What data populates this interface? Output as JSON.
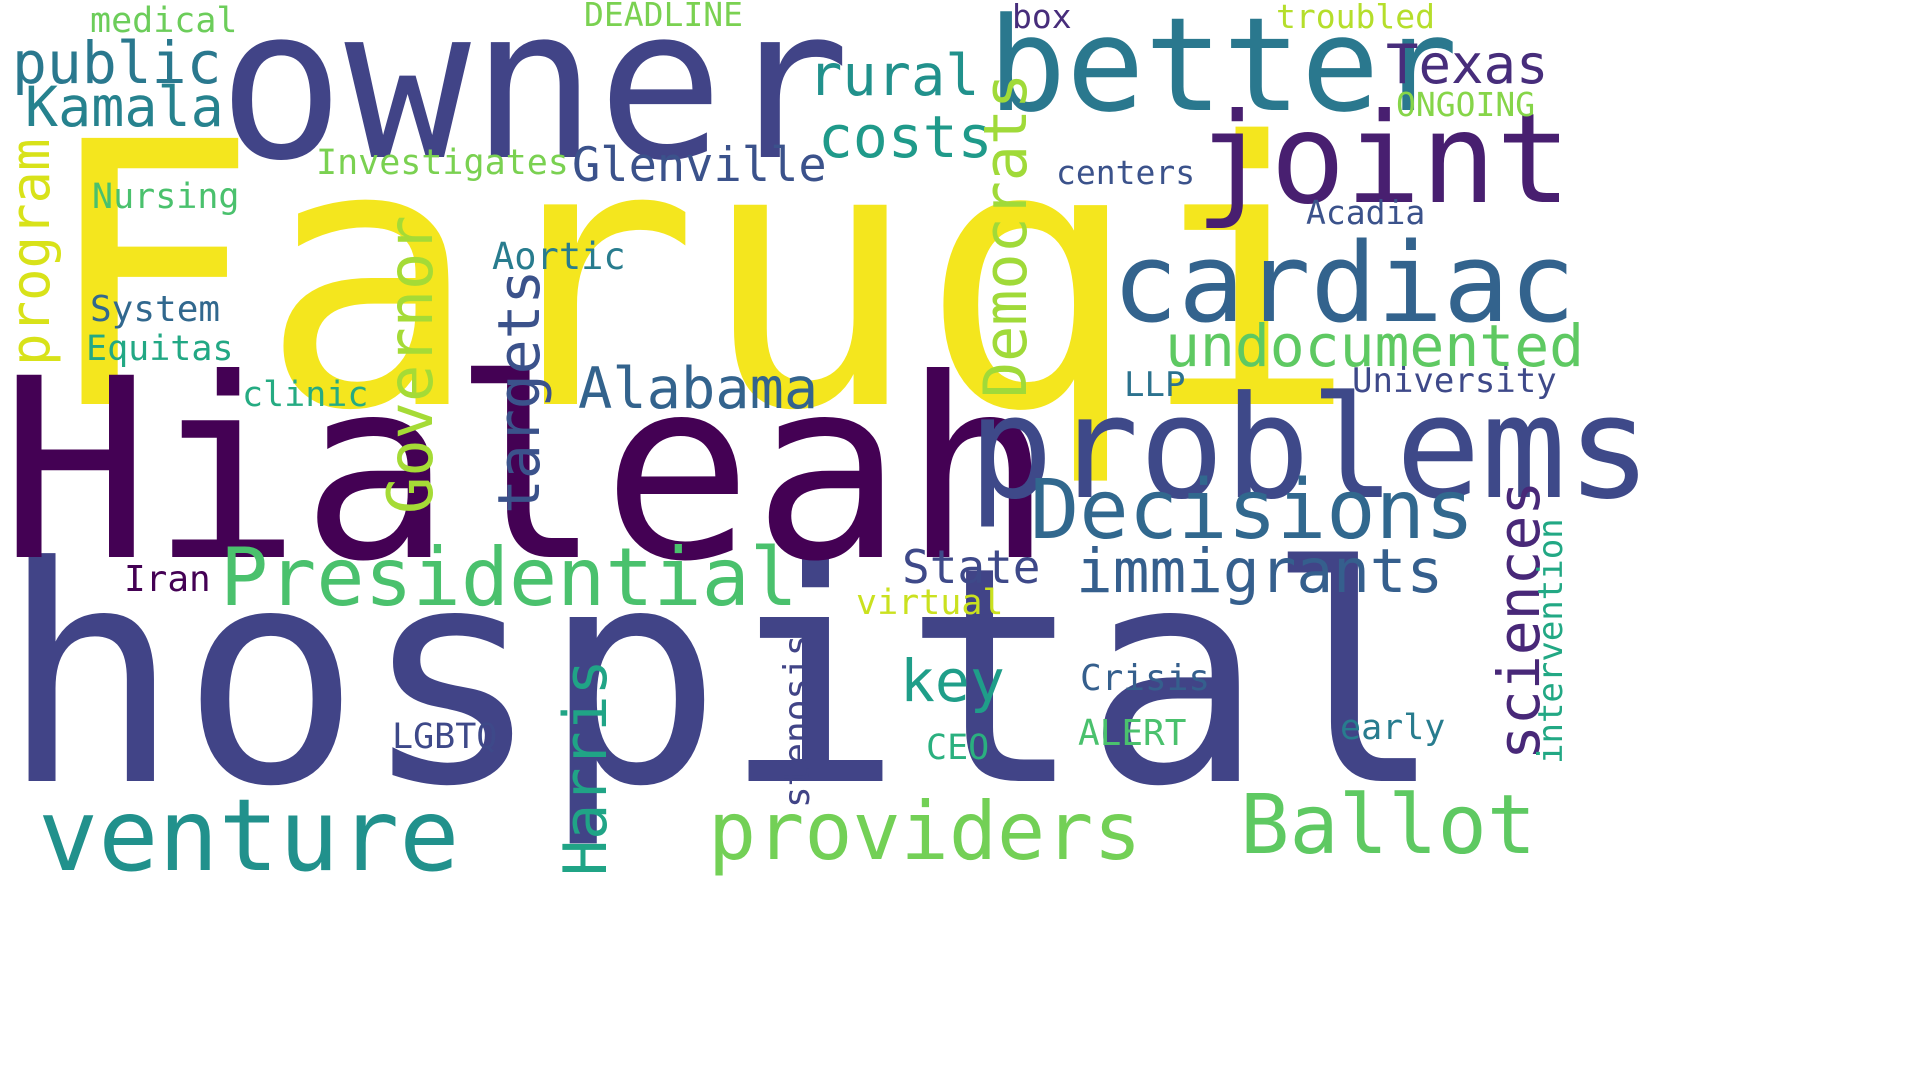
{
  "word_cloud": {
    "words": [
      {
        "text": "hospital",
        "color": "#414487"
      },
      {
        "text": "Faruqi",
        "color": "#f4e61e"
      },
      {
        "text": "Hialeah",
        "color": "#440154"
      },
      {
        "text": "owner",
        "color": "#414487"
      },
      {
        "text": "better",
        "color": "#2a788e"
      },
      {
        "text": "cardiac",
        "color": "#33638d"
      },
      {
        "text": "problems",
        "color": "#3e4989"
      },
      {
        "text": "joint",
        "color": "#481f70"
      },
      {
        "text": "venture",
        "color": "#21918c"
      },
      {
        "text": "Ballot",
        "color": "#5ec962"
      },
      {
        "text": "Presidential",
        "color": "#4ac16d"
      },
      {
        "text": "Decisions",
        "color": "#31688e"
      },
      {
        "text": "providers",
        "color": "#73d056"
      },
      {
        "text": "undocumented",
        "color": "#5ec962"
      },
      {
        "text": "immigrants",
        "color": "#355f8d"
      },
      {
        "text": "Alabama",
        "color": "#33638d"
      },
      {
        "text": "costs",
        "color": "#1f9a8a"
      },
      {
        "text": "rural",
        "color": "#21918c"
      },
      {
        "text": "Texas",
        "color": "#472d7b"
      },
      {
        "text": "public",
        "color": "#2a788e"
      },
      {
        "text": "Kamala",
        "color": "#26828e"
      },
      {
        "text": "Glenville",
        "color": "#3b528b"
      },
      {
        "text": "State",
        "color": "#3e4989"
      },
      {
        "text": "key",
        "color": "#1f9e89"
      },
      {
        "text": "Democrats",
        "color": "#a0da39"
      },
      {
        "text": "Governor",
        "color": "#a5db36"
      },
      {
        "text": "targets",
        "color": "#3b528b"
      },
      {
        "text": "Harris",
        "color": "#20a486"
      },
      {
        "text": "sciences",
        "color": "#482878"
      },
      {
        "text": "program",
        "color": "#d8e219"
      },
      {
        "text": "Nursing",
        "color": "#4ac16d"
      },
      {
        "text": "Investigates",
        "color": "#7ad151"
      },
      {
        "text": "Aortic",
        "color": "#287c8e"
      },
      {
        "text": "System",
        "color": "#31688e"
      },
      {
        "text": "Equitas",
        "color": "#22a884"
      },
      {
        "text": "clinic",
        "color": "#25ab82"
      },
      {
        "text": "Iran",
        "color": "#440154"
      },
      {
        "text": "virtual",
        "color": "#cae11f"
      },
      {
        "text": "Crisis",
        "color": "#355f8d"
      },
      {
        "text": "LGBTQ",
        "color": "#3e4989"
      },
      {
        "text": "CEO",
        "color": "#2ab07f"
      },
      {
        "text": "ALERT",
        "color": "#4ac16d"
      },
      {
        "text": "early",
        "color": "#287c8e"
      },
      {
        "text": "stenosis",
        "color": "#414487"
      },
      {
        "text": "intervention",
        "color": "#22a884"
      },
      {
        "text": "LLP",
        "color": "#2c728e"
      },
      {
        "text": "University",
        "color": "#3e4989"
      },
      {
        "text": "centers",
        "color": "#3b528b"
      },
      {
        "text": "Acadia",
        "color": "#3b528b"
      },
      {
        "text": "ONGOING",
        "color": "#86d549"
      },
      {
        "text": "troubled",
        "color": "#b5de2b"
      },
      {
        "text": "box",
        "color": "#472d7b"
      },
      {
        "text": "DEADLINE",
        "color": "#7ad151"
      },
      {
        "text": "medical",
        "color": "#6ccd5a"
      }
    ]
  }
}
